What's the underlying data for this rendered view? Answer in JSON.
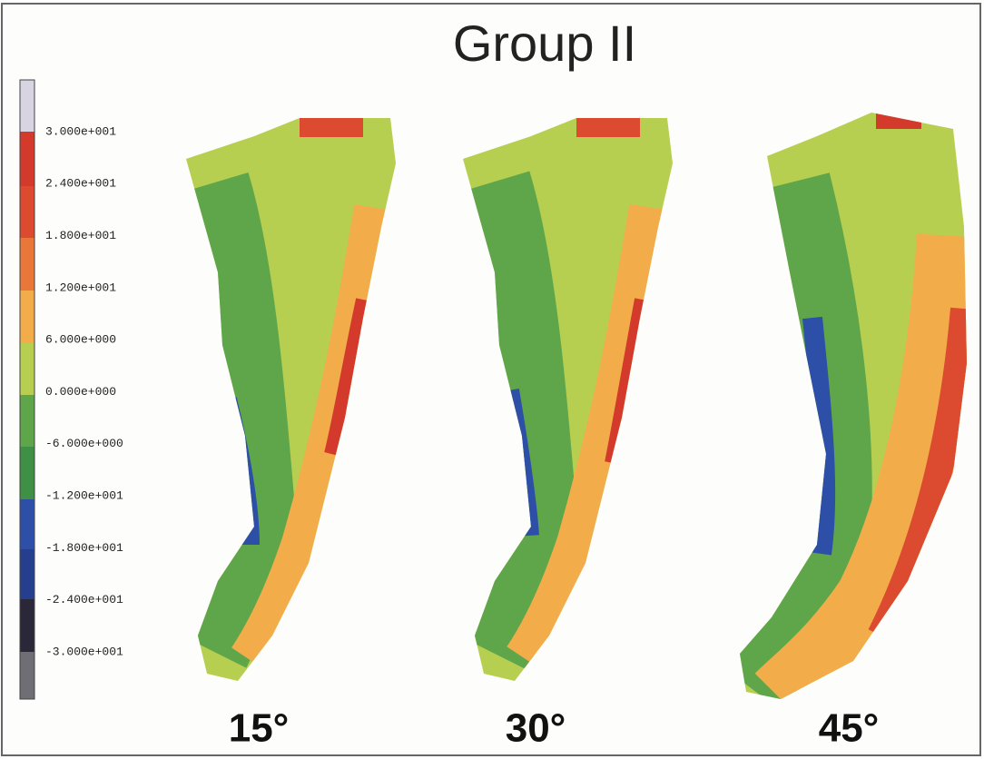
{
  "title": "Group II",
  "colorbar": {
    "labels": [
      "3.000e+001",
      "2.400e+001",
      "1.800e+001",
      "1.200e+001",
      "6.000e+000",
      "0.000e+000",
      "-6.000e+000",
      "-1.200e+001",
      "-1.800e+001",
      "-2.400e+001",
      "-3.000e+001"
    ]
  },
  "panels": [
    {
      "label": "15°"
    },
    {
      "label": "30°"
    },
    {
      "label": "45°"
    }
  ]
}
